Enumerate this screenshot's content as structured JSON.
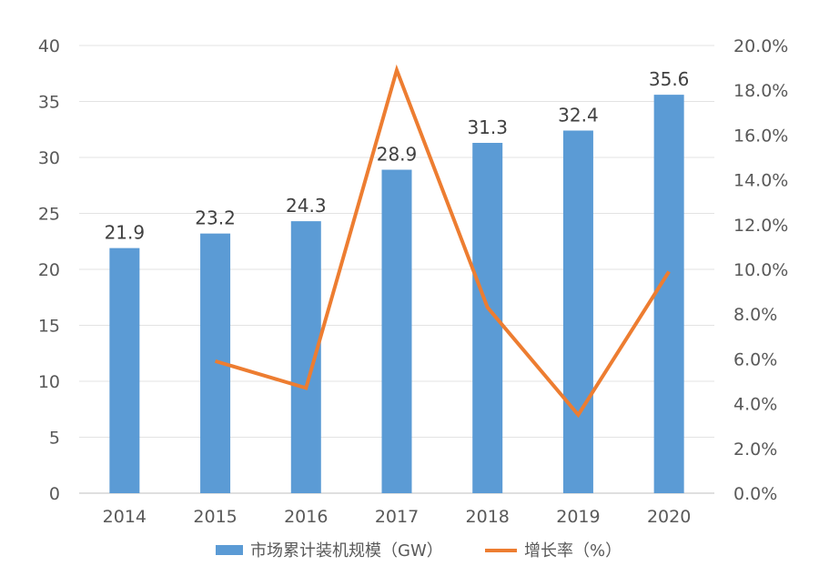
{
  "chart_data": {
    "type": "bar",
    "categories": [
      "2014",
      "2015",
      "2016",
      "2017",
      "2018",
      "2019",
      "2020"
    ],
    "series": [
      {
        "name": "市场累计装机规模（GW）",
        "type": "bar",
        "axis": "left",
        "color": "#5b9bd5",
        "values": [
          21.9,
          23.2,
          24.3,
          28.9,
          31.3,
          32.4,
          35.6
        ],
        "labels": [
          "21.9",
          "23.2",
          "24.3",
          "28.9",
          "31.3",
          "32.4",
          "35.6"
        ]
      },
      {
        "name": "增长率（%）",
        "type": "line",
        "axis": "right",
        "color": "#ed7d31",
        "values": [
          null,
          5.9,
          4.7,
          18.9,
          8.3,
          3.5,
          9.9
        ]
      }
    ],
    "left_axis": {
      "ylim": [
        0,
        40
      ],
      "ticks": [
        "0",
        "5",
        "10",
        "15",
        "20",
        "25",
        "30",
        "35",
        "40"
      ]
    },
    "right_axis": {
      "ylim": [
        0,
        20
      ],
      "ticks": [
        "0.0%",
        "2.0%",
        "4.0%",
        "6.0%",
        "8.0%",
        "10.0%",
        "12.0%",
        "14.0%",
        "16.0%",
        "18.0%",
        "20.0%"
      ]
    },
    "grid": true,
    "legend_position": "bottom",
    "title": "",
    "xlabel": "",
    "ylabel": ""
  }
}
